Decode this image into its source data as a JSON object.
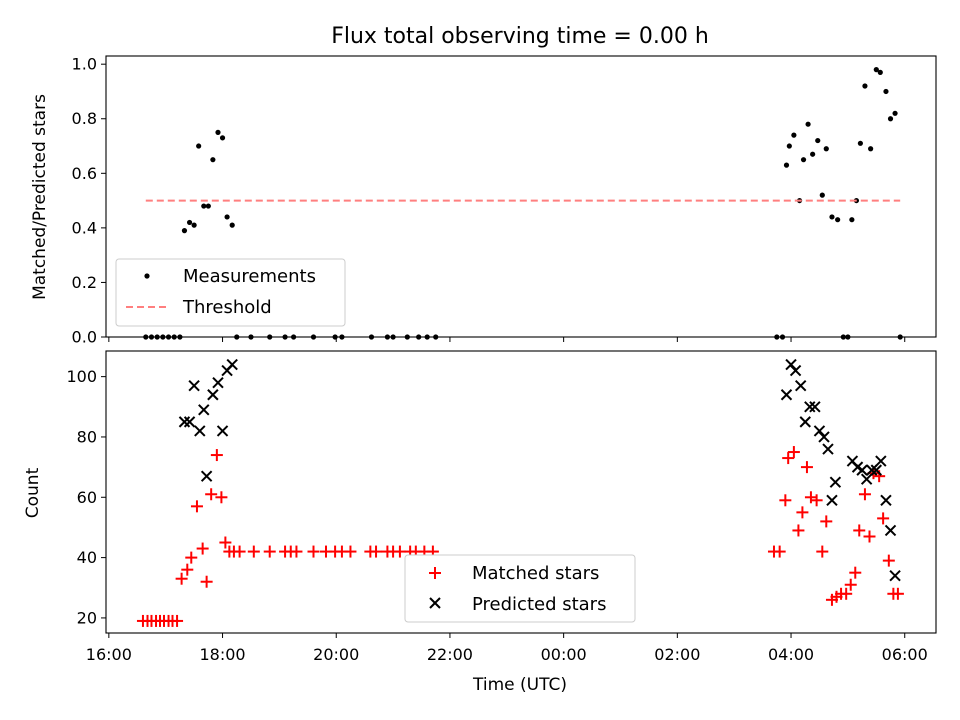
{
  "chart_data": [
    {
      "type": "scatter",
      "title": "Flux total observing time = 0.00 h",
      "xlabel": "",
      "ylabel": "Matched/Predicted stars",
      "xlim": [
        15.95,
        30.55
      ],
      "ylim": [
        0.0,
        1.03
      ],
      "yticks": [
        0.0,
        0.2,
        0.4,
        0.6,
        0.8,
        1.0
      ],
      "ytick_labels": [
        "0.0",
        "0.2",
        "0.4",
        "0.6",
        "0.8",
        "1.0"
      ],
      "legend": "lower-left",
      "grid": false,
      "series": [
        {
          "name": "Measurements",
          "marker": "dot",
          "color": "#000000",
          "points": [
            [
              16.65,
              0.0
            ],
            [
              16.75,
              0.0
            ],
            [
              16.85,
              0.0
            ],
            [
              16.95,
              0.0
            ],
            [
              17.05,
              0.0
            ],
            [
              17.15,
              0.0
            ],
            [
              17.25,
              0.0
            ],
            [
              17.33,
              0.39
            ],
            [
              17.42,
              0.42
            ],
            [
              17.5,
              0.41
            ],
            [
              17.58,
              0.7
            ],
            [
              17.67,
              0.48
            ],
            [
              17.75,
              0.48
            ],
            [
              17.83,
              0.65
            ],
            [
              17.92,
              0.75
            ],
            [
              18.0,
              0.73
            ],
            [
              18.08,
              0.44
            ],
            [
              18.17,
              0.41
            ],
            [
              18.25,
              0.0
            ],
            [
              18.5,
              0.0
            ],
            [
              18.83,
              0.0
            ],
            [
              19.1,
              0.0
            ],
            [
              19.25,
              0.0
            ],
            [
              19.6,
              0.0
            ],
            [
              19.98,
              0.0
            ],
            [
              20.1,
              0.0
            ],
            [
              20.62,
              0.0
            ],
            [
              20.9,
              0.0
            ],
            [
              21.0,
              0.0
            ],
            [
              21.25,
              0.0
            ],
            [
              21.45,
              0.0
            ],
            [
              21.6,
              0.0
            ],
            [
              21.75,
              0.0
            ],
            [
              27.75,
              0.0
            ],
            [
              27.85,
              0.0
            ],
            [
              27.92,
              0.63
            ],
            [
              27.97,
              0.7
            ],
            [
              28.05,
              0.74
            ],
            [
              28.15,
              0.5
            ],
            [
              28.22,
              0.65
            ],
            [
              28.3,
              0.78
            ],
            [
              28.38,
              0.67
            ],
            [
              28.47,
              0.72
            ],
            [
              28.55,
              0.52
            ],
            [
              28.62,
              0.69
            ],
            [
              28.72,
              0.44
            ],
            [
              28.82,
              0.43
            ],
            [
              28.92,
              0.0
            ],
            [
              29.0,
              0.0
            ],
            [
              29.07,
              0.43
            ],
            [
              29.15,
              0.5
            ],
            [
              29.22,
              0.71
            ],
            [
              29.3,
              0.92
            ],
            [
              29.4,
              0.69
            ],
            [
              29.5,
              0.98
            ],
            [
              29.57,
              0.97
            ],
            [
              29.67,
              0.9
            ],
            [
              29.75,
              0.8
            ],
            [
              29.83,
              0.82
            ],
            [
              29.92,
              0.0
            ]
          ]
        },
        {
          "name": "Threshold",
          "style": "dashed",
          "color": "#ff7f7f",
          "points": [
            [
              16.65,
              0.5
            ],
            [
              29.92,
              0.5
            ]
          ]
        }
      ]
    },
    {
      "type": "scatter",
      "title": "",
      "xlabel": "Time (UTC)",
      "ylabel": "Count",
      "xlim": [
        15.95,
        30.55
      ],
      "ylim": [
        15,
        108.5
      ],
      "yticks": [
        20,
        40,
        60,
        80,
        100
      ],
      "ytick_labels": [
        "20",
        "40",
        "60",
        "80",
        "100"
      ],
      "xticks": [
        16,
        18,
        20,
        22,
        24,
        26,
        28,
        30
      ],
      "xtick_labels": [
        "16:00",
        "18:00",
        "20:00",
        "22:00",
        "00:00",
        "02:00",
        "04:00",
        "06:00"
      ],
      "legend": "bottom-center",
      "grid": false,
      "series": [
        {
          "name": "Matched stars",
          "marker": "plus",
          "color": "#ff0000",
          "points": [
            [
              16.6,
              19
            ],
            [
              16.68,
              19
            ],
            [
              16.75,
              19
            ],
            [
              16.83,
              19
            ],
            [
              16.9,
              19
            ],
            [
              16.97,
              19
            ],
            [
              17.05,
              19
            ],
            [
              17.12,
              19
            ],
            [
              17.2,
              19
            ],
            [
              17.28,
              33
            ],
            [
              17.38,
              36
            ],
            [
              17.45,
              40
            ],
            [
              17.55,
              57
            ],
            [
              17.65,
              43
            ],
            [
              17.72,
              32
            ],
            [
              17.8,
              61
            ],
            [
              17.9,
              74
            ],
            [
              17.98,
              60
            ],
            [
              18.05,
              45
            ],
            [
              18.12,
              42
            ],
            [
              18.2,
              42
            ],
            [
              18.3,
              42
            ],
            [
              18.55,
              42
            ],
            [
              18.83,
              42
            ],
            [
              19.1,
              42
            ],
            [
              19.2,
              42
            ],
            [
              19.3,
              42
            ],
            [
              19.6,
              42
            ],
            [
              19.82,
              42
            ],
            [
              19.98,
              42
            ],
            [
              20.1,
              42
            ],
            [
              20.25,
              42
            ],
            [
              20.6,
              42
            ],
            [
              20.7,
              42
            ],
            [
              20.9,
              42
            ],
            [
              21.0,
              42
            ],
            [
              21.12,
              42
            ],
            [
              21.3,
              42
            ],
            [
              21.4,
              42
            ],
            [
              21.55,
              42
            ],
            [
              21.7,
              42
            ],
            [
              27.7,
              42
            ],
            [
              27.8,
              42
            ],
            [
              27.9,
              59
            ],
            [
              27.95,
              73
            ],
            [
              28.05,
              75
            ],
            [
              28.13,
              49
            ],
            [
              28.2,
              55
            ],
            [
              28.28,
              70
            ],
            [
              28.35,
              60
            ],
            [
              28.45,
              59
            ],
            [
              28.55,
              42
            ],
            [
              28.62,
              52
            ],
            [
              28.72,
              26
            ],
            [
              28.8,
              27
            ],
            [
              28.88,
              28
            ],
            [
              28.97,
              28
            ],
            [
              29.05,
              31
            ],
            [
              29.13,
              35
            ],
            [
              29.2,
              49
            ],
            [
              29.3,
              61
            ],
            [
              29.38,
              47
            ],
            [
              29.45,
              68
            ],
            [
              29.55,
              67
            ],
            [
              29.62,
              53
            ],
            [
              29.72,
              39
            ],
            [
              29.8,
              28
            ],
            [
              29.88,
              28
            ]
          ]
        },
        {
          "name": "Predicted stars",
          "marker": "x",
          "color": "#000000",
          "points": [
            [
              17.33,
              85
            ],
            [
              17.42,
              85
            ],
            [
              17.5,
              97
            ],
            [
              17.6,
              82
            ],
            [
              17.67,
              89
            ],
            [
              17.72,
              67
            ],
            [
              17.83,
              94
            ],
            [
              17.92,
              98
            ],
            [
              18.0,
              82
            ],
            [
              18.08,
              102
            ],
            [
              18.17,
              104
            ],
            [
              27.92,
              94
            ],
            [
              28.0,
              104
            ],
            [
              28.08,
              102
            ],
            [
              28.17,
              97
            ],
            [
              28.25,
              85
            ],
            [
              28.33,
              90
            ],
            [
              28.42,
              90
            ],
            [
              28.5,
              82
            ],
            [
              28.58,
              80
            ],
            [
              28.65,
              76
            ],
            [
              28.78,
              65
            ],
            [
              28.72,
              59
            ],
            [
              29.08,
              72
            ],
            [
              29.17,
              70
            ],
            [
              29.25,
              69
            ],
            [
              29.33,
              66
            ],
            [
              29.42,
              69
            ],
            [
              29.5,
              69
            ],
            [
              29.58,
              72
            ],
            [
              29.67,
              59
            ],
            [
              29.75,
              49
            ],
            [
              29.83,
              34
            ]
          ]
        }
      ]
    }
  ]
}
